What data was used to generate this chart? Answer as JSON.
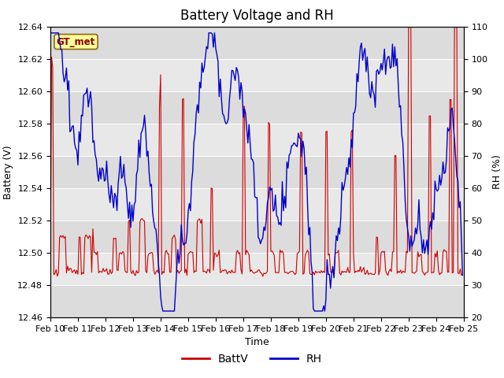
{
  "title": "Battery Voltage and RH",
  "xlabel": "Time",
  "ylabel_left": "Battery (V)",
  "ylabel_right": "RH (%)",
  "annotation": "GT_met",
  "ylim_left": [
    12.46,
    12.64
  ],
  "ylim_right": [
    20,
    110
  ],
  "yticks_left": [
    12.46,
    12.48,
    12.5,
    12.52,
    12.54,
    12.56,
    12.58,
    12.6,
    12.62,
    12.64
  ],
  "yticks_right": [
    20,
    30,
    40,
    50,
    60,
    70,
    80,
    90,
    100,
    110
  ],
  "xtick_labels": [
    "Feb 10",
    "Feb 11",
    "Feb 12",
    "Feb 13",
    "Feb 14",
    "Feb 15",
    "Feb 16",
    "Feb 17",
    "Feb 18",
    "Feb 19",
    "Feb 20",
    "Feb 21",
    "Feb 22",
    "Feb 23",
    "Feb 24",
    "Feb 25"
  ],
  "batt_color": "#cc0000",
  "rh_color": "#0000cc",
  "legend_items": [
    "BattV",
    "RH"
  ],
  "bg_color": "#ffffff",
  "plot_bg": "#dcdcdc",
  "band_light": "#e8e8e8",
  "title_fontsize": 12,
  "axis_label_fontsize": 9,
  "tick_fontsize": 8
}
